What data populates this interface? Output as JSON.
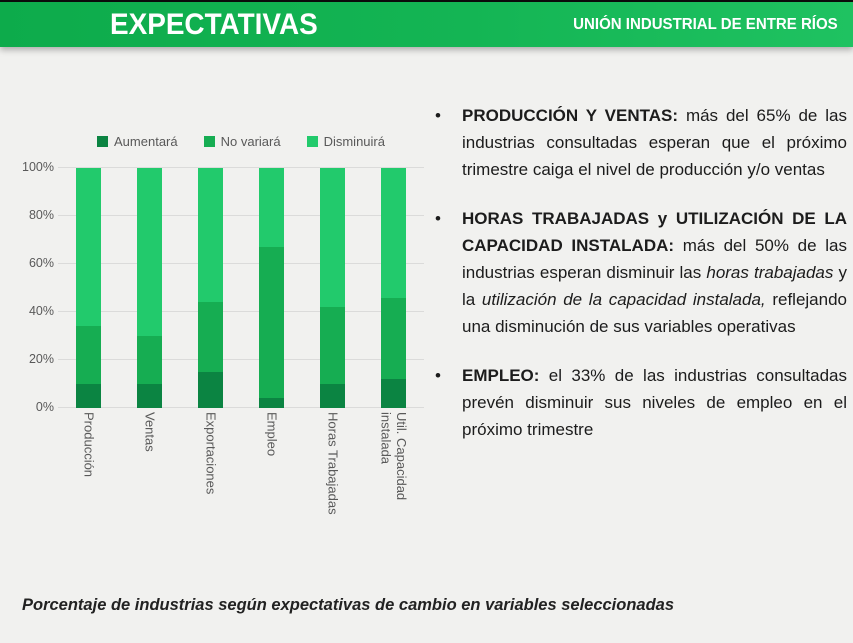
{
  "header": {
    "title": "EXPECTATIVAS",
    "org": "UNIÓN INDUSTRIAL DE ENTRE RÍOS"
  },
  "colors": {
    "header_green_left": "#0dab4b",
    "header_green_right": "#1fc261",
    "background": "#f1f1ef",
    "aumentara": "#0b8442",
    "no_variara": "#16ad52",
    "disminuira": "#22ca6c",
    "grid": "#dbdbda",
    "axis_text": "#595959",
    "body_text": "#1c1c1c"
  },
  "chart_data": {
    "type": "bar",
    "stacked": true,
    "title": "",
    "xlabel": "",
    "ylabel": "",
    "ylim": [
      0,
      100
    ],
    "grid": true,
    "legend_position": "top",
    "categories": [
      "Producción",
      "Ventas",
      "Exportaciones",
      "Empleo",
      "Horas Trabajadas",
      "Util. Capacidad instalada"
    ],
    "series": [
      {
        "name": "Aumentará",
        "color_key": "aumentara",
        "values": [
          10,
          10,
          15,
          4,
          10,
          12
        ]
      },
      {
        "name": "No variará",
        "color_key": "no_variara",
        "values": [
          24,
          20,
          29,
          63,
          32,
          34
        ]
      },
      {
        "name": "Disminuirá",
        "color_key": "disminuira",
        "values": [
          66,
          70,
          56,
          33,
          58,
          54
        ]
      }
    ],
    "y_ticks": [
      "0%",
      "20%",
      "40%",
      "60%",
      "80%",
      "100%"
    ]
  },
  "bullet_marker": "•",
  "bullets": [
    {
      "segments": [
        {
          "t": "PRODUCCIÓN Y VENTAS:",
          "b": true
        },
        {
          "t": " más del 65% de las industrias consultadas esperan que el próximo trimestre caiga el nivel de producción y/o ventas"
        }
      ]
    },
    {
      "segments": [
        {
          "t": "HORAS TRABAJADAS y UTILIZACIÓN DE LA CAPACIDAD INSTALADA:",
          "b": true
        },
        {
          "t": " más del 50% de las industrias esperan disminuir las "
        },
        {
          "t": "horas trabajadas",
          "i": true
        },
        {
          "t": " y la "
        },
        {
          "t": "utilización de la capacidad instalada,",
          "i": true
        },
        {
          "t": " reflejando una disminución de sus variables operativas"
        }
      ]
    },
    {
      "segments": [
        {
          "t": "EMPLEO:",
          "b": true
        },
        {
          "t": " el 33% de las industrias consultadas prevén disminuir sus niveles de empleo en el próximo trimestre"
        }
      ]
    }
  ],
  "caption": "Porcentaje de industrias según expectativas de cambio en variables seleccionadas"
}
